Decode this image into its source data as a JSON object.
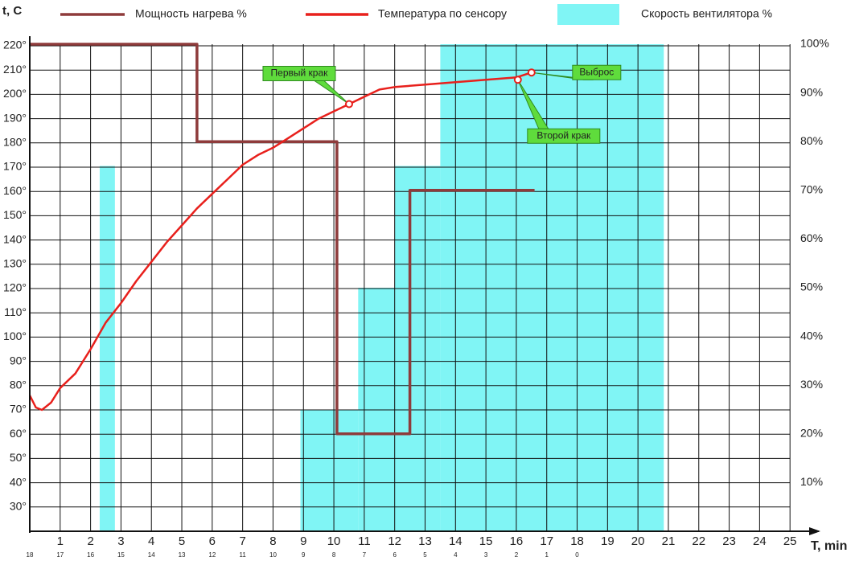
{
  "chart_data": {
    "type": "line",
    "y_axis_label": "t, C",
    "x_axis_label": "T, min",
    "xlim": [
      0,
      26
    ],
    "xticks": [
      1,
      2,
      3,
      4,
      5,
      6,
      7,
      8,
      9,
      10,
      11,
      12,
      13,
      14,
      15,
      16,
      17,
      18,
      19,
      20,
      21,
      22,
      23,
      24,
      25
    ],
    "x2ticks": [
      {
        "value": 0,
        "label": "18"
      },
      {
        "value": 1,
        "label": "17"
      },
      {
        "value": 2,
        "label": "16"
      },
      {
        "value": 3,
        "label": "15"
      },
      {
        "value": 4,
        "label": "14"
      },
      {
        "value": 5,
        "label": "13"
      },
      {
        "value": 6,
        "label": "12"
      },
      {
        "value": 7,
        "label": "11"
      },
      {
        "value": 8,
        "label": "10"
      },
      {
        "value": 9,
        "label": "9"
      },
      {
        "value": 10,
        "label": "8"
      },
      {
        "value": 11,
        "label": "7"
      },
      {
        "value": 12,
        "label": "6"
      },
      {
        "value": 13,
        "label": "5"
      },
      {
        "value": 14,
        "label": "4"
      },
      {
        "value": 15,
        "label": "3"
      },
      {
        "value": 16,
        "label": "2"
      },
      {
        "value": 17,
        "label": "1"
      },
      {
        "value": 18,
        "label": "0"
      }
    ],
    "ylim": [
      20,
      220
    ],
    "yticks": [
      {
        "value": 30,
        "label": "30°"
      },
      {
        "value": 40,
        "label": "40°"
      },
      {
        "value": 50,
        "label": "50°"
      },
      {
        "value": 60,
        "label": "60°"
      },
      {
        "value": 70,
        "label": "70°"
      },
      {
        "value": 80,
        "label": "80°"
      },
      {
        "value": 90,
        "label": "90°"
      },
      {
        "value": 100,
        "label": "100°"
      },
      {
        "value": 110,
        "label": "110°"
      },
      {
        "value": 120,
        "label": "120°"
      },
      {
        "value": 130,
        "label": "130°"
      },
      {
        "value": 140,
        "label": "140°"
      },
      {
        "value": 150,
        "label": "150°"
      },
      {
        "value": 160,
        "label": "160°"
      },
      {
        "value": 170,
        "label": "170°"
      },
      {
        "value": 180,
        "label": "180°"
      },
      {
        "value": 190,
        "label": "190°"
      },
      {
        "value": 200,
        "label": "200°"
      },
      {
        "value": 210,
        "label": "210°"
      },
      {
        "value": 220,
        "label": "220°"
      }
    ],
    "y2lim": [
      0,
      100
    ],
    "y2ticks": [
      {
        "value": 10,
        "label": "10%"
      },
      {
        "value": 20,
        "label": "20%"
      },
      {
        "value": 30,
        "label": "30%"
      },
      {
        "value": 40,
        "label": "40%"
      },
      {
        "value": 50,
        "label": "50%"
      },
      {
        "value": 60,
        "label": "60%"
      },
      {
        "value": 70,
        "label": "70%"
      },
      {
        "value": 80,
        "label": "80%"
      },
      {
        "value": 90,
        "label": "90%"
      },
      {
        "value": 100,
        "label": "100%"
      }
    ],
    "grid": true,
    "series": [
      {
        "name": "Мощность нагрева %",
        "color": "#8e3b3b",
        "type": "line",
        "axis": "y2",
        "x": [
          0,
          5.5,
          5.5,
          10.1,
          10.1,
          12.5,
          12.5,
          16.6
        ],
        "values": [
          100,
          100,
          80,
          80,
          20,
          20,
          70,
          70
        ]
      },
      {
        "name": "Температура по сенсору",
        "color": "#e8201c",
        "type": "line",
        "x": [
          0,
          0.2,
          0.4,
          0.7,
          1,
          1.5,
          2,
          2.5,
          3,
          3.5,
          4,
          4.5,
          5,
          5.5,
          6,
          6.5,
          7,
          7.5,
          8,
          8.5,
          9,
          9.5,
          10,
          10.5,
          11,
          11.5,
          12,
          13,
          14,
          15,
          16,
          16.5
        ],
        "values": [
          76,
          71,
          70,
          73,
          79,
          85,
          95,
          106,
          114,
          123,
          131,
          139,
          146,
          153,
          159,
          165,
          171,
          175,
          178,
          182,
          186,
          190,
          193,
          196,
          199,
          202,
          203,
          204,
          205,
          206,
          207,
          209
        ]
      },
      {
        "name": "Скорость вентилятора %",
        "color": "#80f5f5",
        "type": "step-area",
        "axis": "y2",
        "x": [
          2.3,
          2.8,
          8.9,
          10.8,
          12.0,
          13.5,
          20.85
        ],
        "values": [
          75,
          null,
          25,
          50,
          75,
          100,
          null
        ]
      }
    ],
    "annotations": [
      {
        "text": "Первый крак",
        "x": 10.5,
        "y": 196
      },
      {
        "text": "Второй крак",
        "x": 16.05,
        "y": 206
      },
      {
        "text": "Выброс",
        "x": 16.5,
        "y": 209
      }
    ]
  }
}
